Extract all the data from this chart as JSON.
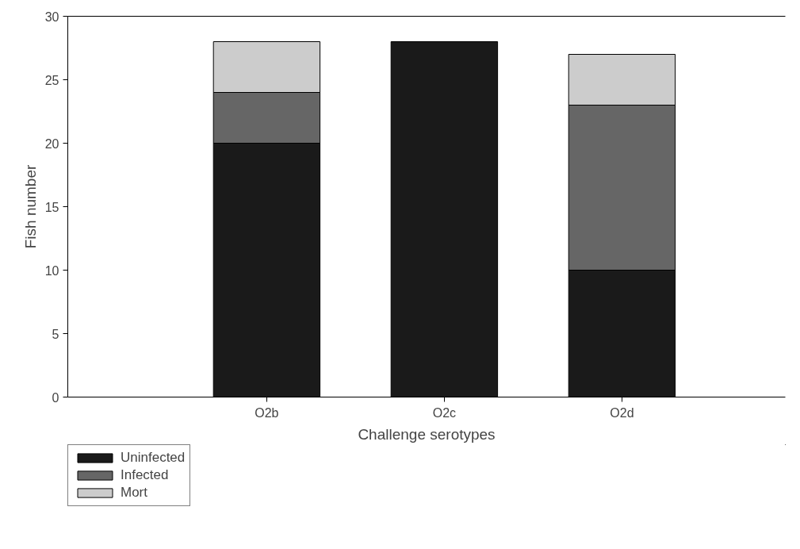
{
  "chart_data": {
    "type": "bar",
    "stacked": true,
    "xlabel": "Challenge serotypes",
    "ylabel": "Fish number",
    "categories": [
      "O2b",
      "O2c",
      "O2d"
    ],
    "series": [
      {
        "name": "Uninfected",
        "color": "#1a1a1a",
        "values": [
          20,
          28,
          10
        ]
      },
      {
        "name": "Infected",
        "color": "#666666",
        "values": [
          4,
          0,
          13
        ]
      },
      {
        "name": "Mort",
        "color": "#cccccc",
        "values": [
          4,
          0,
          4
        ]
      }
    ],
    "ylim": [
      0,
      30
    ],
    "yticks": [
      0,
      5,
      10,
      15,
      20,
      25,
      30
    ],
    "grid": false,
    "legend": "bottom left"
  }
}
